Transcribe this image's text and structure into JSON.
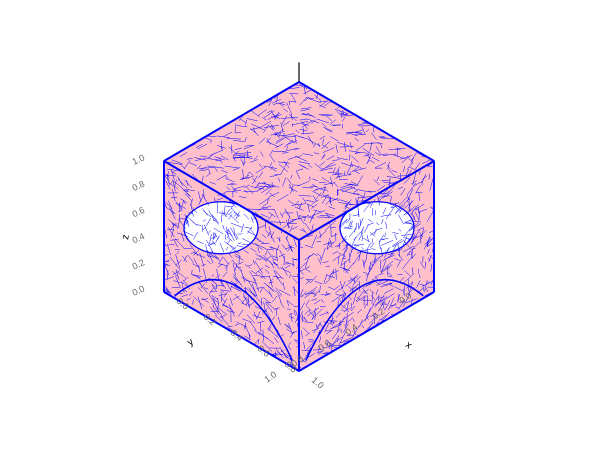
{
  "chart_data": {
    "type": "mesh3d",
    "title": "",
    "xlabel": "x",
    "ylabel": "y",
    "zlabel": "z",
    "xlim": [
      0,
      1
    ],
    "ylim": [
      0,
      1
    ],
    "zlim": [
      0,
      1
    ],
    "x_ticks": [
      "0.0",
      "0.2",
      "0.4",
      "0.6",
      "0.8",
      "1.0"
    ],
    "y_ticks": [
      "0.0",
      "0.2",
      "0.4",
      "0.6",
      "0.8",
      "1.0"
    ],
    "z_ticks": [
      "0.0",
      "0.2",
      "0.4",
      "0.6",
      "0.8",
      "1.0"
    ],
    "grid": true,
    "geometry": {
      "shape": "cube with spherical cavities cut at the corners",
      "face_color": "#ffc0cb",
      "edge_color": "#0000ff"
    },
    "colors": {
      "face": "#ffc0cb",
      "mesh_edge": "#0000ff",
      "grid": "#dddddd",
      "tick_text": "#666666",
      "axis_line": "#000000"
    }
  }
}
